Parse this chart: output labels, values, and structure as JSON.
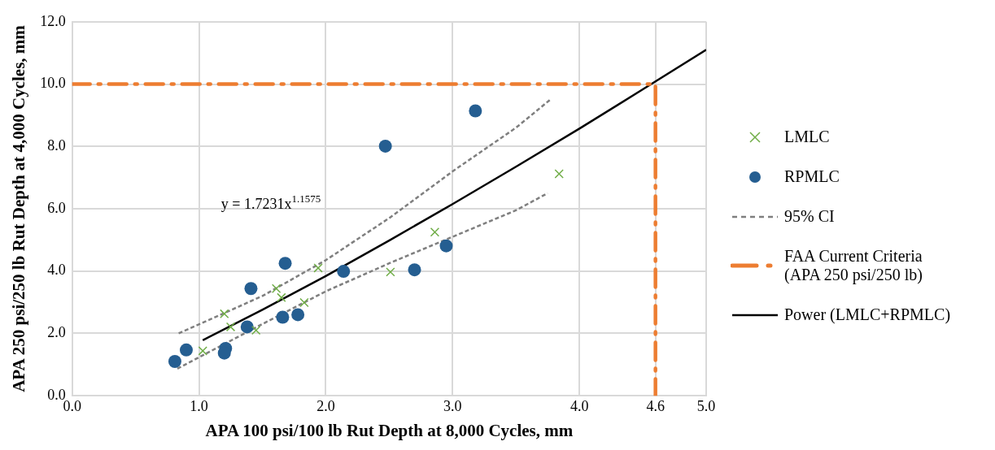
{
  "chart_data": {
    "type": "scatter",
    "xlabel": "APA 100 psi/100 lb Rut Depth at 8,000 Cycles, mm",
    "ylabel": "APA 250 psi/250 lb Rut Depth at 4,000 Cycles, mm",
    "xlim": [
      0,
      5
    ],
    "xticks": [
      {
        "value": 0,
        "label": "0.0"
      },
      {
        "value": 1,
        "label": "1.0"
      },
      {
        "value": 2,
        "label": "2.0"
      },
      {
        "value": 3,
        "label": "3.0"
      },
      {
        "value": 4,
        "label": "4.0"
      },
      {
        "value": 4.6,
        "label": "4.6"
      },
      {
        "value": 5,
        "label": "5.0"
      }
    ],
    "ylim": [
      0,
      12
    ],
    "yticks": [
      {
        "value": 0,
        "label": "0.0"
      },
      {
        "value": 2,
        "label": "2.0"
      },
      {
        "value": 4,
        "label": "4.0"
      },
      {
        "value": 6,
        "label": "6.0"
      },
      {
        "value": 8,
        "label": "8.0"
      },
      {
        "value": 10,
        "label": "10.0"
      },
      {
        "value": 12,
        "label": "12.0"
      }
    ],
    "grid": true,
    "legend": "right",
    "series": [
      {
        "name": "LMLC",
        "marker": "cross",
        "color": "#70ad47",
        "x": [
          1.03,
          1.2,
          1.25,
          1.45,
          1.61,
          1.65,
          1.83,
          1.94,
          2.51,
          2.86,
          3.84
        ],
        "values": [
          1.44,
          2.63,
          2.21,
          2.1,
          3.44,
          3.15,
          2.99,
          4.1,
          3.97,
          5.25,
          7.12
        ]
      },
      {
        "name": "RPMLC",
        "marker": "circle",
        "color": "#255e91",
        "x": [
          0.81,
          0.9,
          1.21,
          1.2,
          1.38,
          1.41,
          1.66,
          1.78,
          1.68,
          2.14,
          2.47,
          3.18,
          2.7,
          2.95
        ],
        "values": [
          1.1,
          1.47,
          1.52,
          1.37,
          2.21,
          3.44,
          2.52,
          2.6,
          4.25,
          3.99,
          8.01,
          9.14,
          4.04,
          4.81
        ]
      },
      {
        "name": "95% CI",
        "type": "line",
        "marker": "none",
        "line_style": "dashed",
        "color": "#7f7f7f",
        "x": [
          0.84,
          1.5,
          2.0,
          2.5,
          3.0,
          3.5,
          3.77
        ],
        "values": [
          2.0,
          3.2,
          4.35,
          5.7,
          7.2,
          8.6,
          9.5
        ]
      },
      {
        "type": "line",
        "marker": "none",
        "line_style": "dashed",
        "color": "#7f7f7f",
        "x": [
          0.83,
          1.5,
          2.0,
          2.5,
          3.0,
          3.5,
          3.75
        ],
        "values": [
          0.87,
          2.3,
          3.35,
          4.25,
          5.1,
          5.95,
          6.5
        ]
      },
      {
        "name": "FAA Current Criteria (APA 250 psi/250 lb)",
        "type": "line",
        "marker": "none",
        "line_style": "dashed",
        "color": "#ed7d31",
        "x": [
          0,
          4.6,
          4.6
        ],
        "values": [
          10,
          10,
          0
        ]
      },
      {
        "name": "Power (LMLC+RPMLC)",
        "type": "line",
        "marker": "none",
        "line_style": "solid",
        "color": "#000000",
        "x": [
          1.03,
          1.5,
          2,
          2.5,
          3,
          3.5,
          4,
          4.5,
          5
        ],
        "values": [
          1.78,
          2.76,
          3.84,
          4.98,
          6.15,
          7.35,
          8.57,
          9.83,
          11.1
        ]
      }
    ],
    "annotations": [
      "y = 1.7231x$^{1.1575}$"
    ]
  }
}
